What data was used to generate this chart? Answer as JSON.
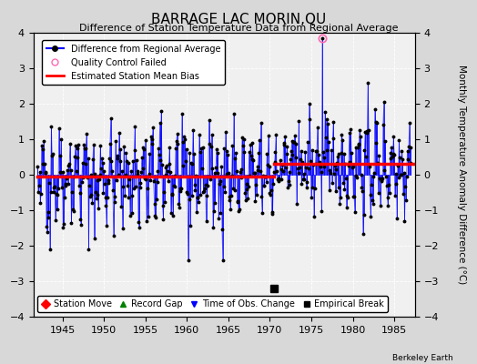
{
  "title": "BARRAGE LAC MORIN,QU",
  "subtitle": "Difference of Station Temperature Data from Regional Average",
  "ylabel_right": "Monthly Temperature Anomaly Difference (°C)",
  "xlim": [
    1941.5,
    1987.5
  ],
  "ylim": [
    -4,
    4
  ],
  "yticks": [
    -4,
    -3,
    -2,
    -1,
    0,
    1,
    2,
    3,
    4
  ],
  "xticks": [
    1945,
    1950,
    1955,
    1960,
    1965,
    1970,
    1975,
    1980,
    1985
  ],
  "bias_level_before": -0.05,
  "bias_level_after": 0.3,
  "bias_change_year": 1970.5,
  "qc_fail_year": 1976.3,
  "qc_fail_value": 3.85,
  "empirical_break_year": 1970.5,
  "empirical_break_value": -3.2,
  "background_color": "#d8d8d8",
  "plot_bg_color": "#f0f0f0",
  "line_color": "#0000ff",
  "dot_color": "#000000",
  "bias_color": "#ff0000",
  "grid_color": "#ffffff",
  "seed": 42
}
